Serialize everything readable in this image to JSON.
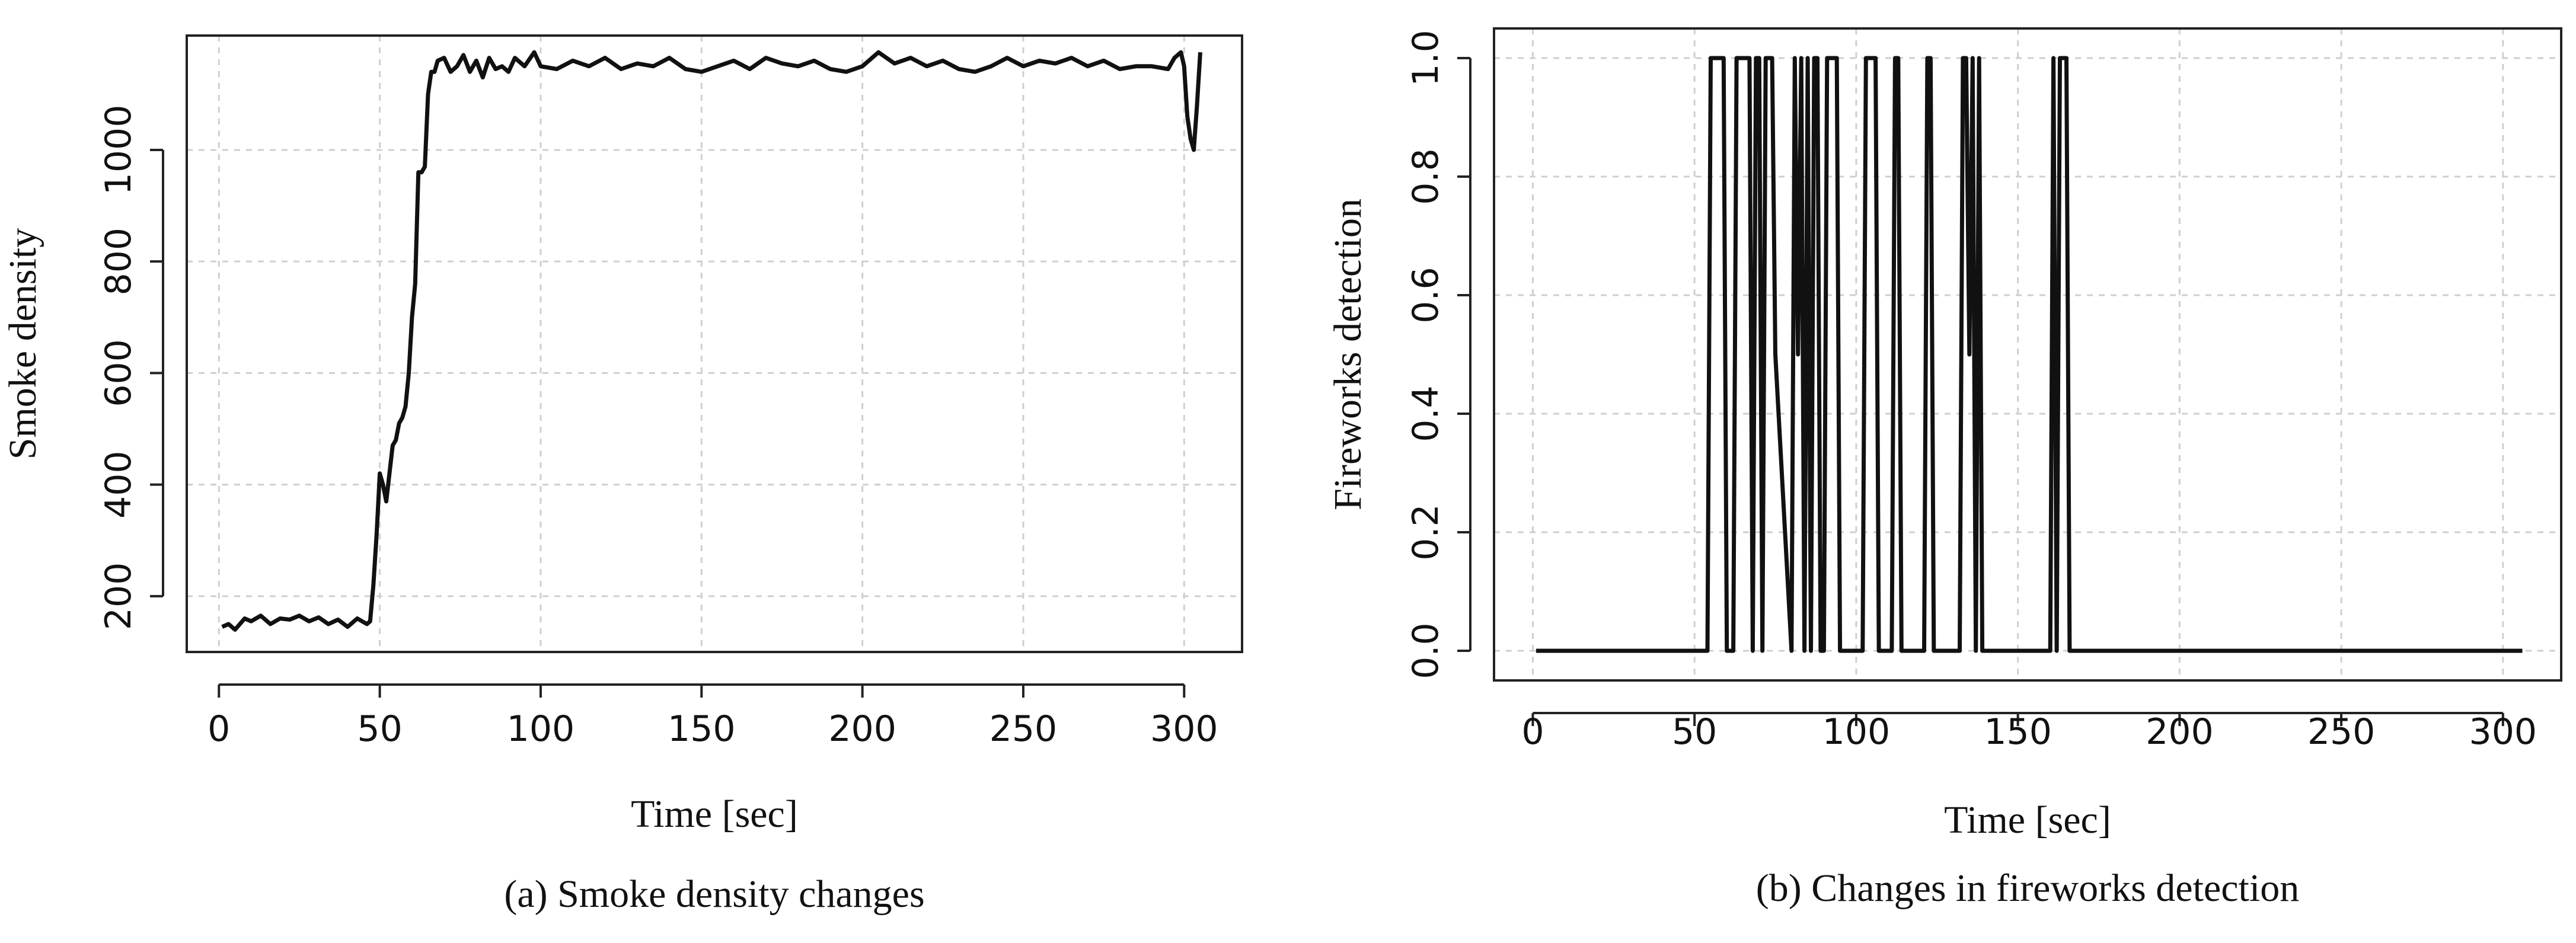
{
  "chart_data": [
    {
      "type": "line",
      "xlabel": "Time [sec]",
      "ylabel": "Smoke density",
      "caption": "(a) Smoke density changes",
      "xlim": [
        -10,
        318
      ],
      "ylim": [
        100,
        1205
      ],
      "x_ticks": [
        0,
        50,
        100,
        150,
        200,
        250,
        300
      ],
      "y_ticks": [
        200,
        400,
        600,
        800,
        1000
      ],
      "grid": true,
      "series": [
        {
          "x": [
            1,
            3,
            5,
            8,
            10,
            13,
            16,
            19,
            22,
            25,
            28,
            31,
            34,
            37,
            40,
            43,
            46,
            47,
            48,
            49,
            50,
            51,
            52,
            53,
            54,
            55,
            56,
            57,
            58,
            59,
            60,
            61,
            62,
            63,
            64,
            65,
            66,
            67,
            68,
            70,
            72,
            74,
            76,
            78,
            80,
            82,
            84,
            86,
            88,
            90,
            92,
            95,
            98,
            100,
            105,
            110,
            115,
            120,
            125,
            130,
            135,
            140,
            145,
            150,
            155,
            160,
            165,
            170,
            175,
            180,
            185,
            190,
            195,
            200,
            205,
            210,
            215,
            220,
            225,
            230,
            235,
            240,
            245,
            250,
            255,
            260,
            265,
            270,
            275,
            280,
            285,
            290,
            295,
            297,
            299,
            300,
            301,
            302,
            303,
            304,
            305
          ],
          "y": [
            145,
            150,
            140,
            160,
            155,
            165,
            150,
            160,
            158,
            165,
            155,
            162,
            150,
            158,
            145,
            160,
            150,
            155,
            220,
            310,
            420,
            400,
            370,
            420,
            470,
            480,
            510,
            520,
            540,
            600,
            700,
            760,
            960,
            960,
            970,
            1100,
            1140,
            1140,
            1160,
            1165,
            1140,
            1150,
            1170,
            1140,
            1160,
            1130,
            1165,
            1145,
            1150,
            1140,
            1165,
            1150,
            1175,
            1150,
            1145,
            1160,
            1150,
            1165,
            1145,
            1155,
            1150,
            1165,
            1145,
            1140,
            1150,
            1160,
            1145,
            1165,
            1155,
            1150,
            1160,
            1145,
            1140,
            1150,
            1175,
            1155,
            1165,
            1150,
            1160,
            1145,
            1140,
            1150,
            1165,
            1150,
            1160,
            1155,
            1165,
            1150,
            1160,
            1145,
            1150,
            1150,
            1145,
            1165,
            1175,
            1150,
            1060,
            1020,
            1000,
            1080,
            1175
          ]
        }
      ]
    },
    {
      "type": "line",
      "xlabel": "Time [sec]",
      "ylabel": "Fireworks detection",
      "caption": "(b) Changes in fireworks detection",
      "xlim": [
        -12,
        318
      ],
      "ylim": [
        -0.05,
        1.05
      ],
      "x_ticks": [
        0,
        50,
        100,
        150,
        200,
        250,
        300
      ],
      "y_ticks": [
        "0.0",
        "0.2",
        "0.4",
        "0.6",
        "0.8",
        "1.0"
      ],
      "grid": true,
      "series": [
        {
          "x": [
            1,
            54,
            55,
            59,
            60,
            62,
            63,
            67,
            68,
            69,
            70,
            71,
            72,
            74,
            75,
            80,
            81,
            82,
            83,
            84,
            85,
            86,
            87,
            88,
            89,
            90,
            91,
            94,
            95,
            102,
            103,
            106,
            107,
            111,
            112,
            113,
            114,
            121,
            122,
            123,
            124,
            132,
            133,
            134,
            135,
            136,
            137,
            138,
            139,
            160,
            161,
            162,
            163,
            165,
            166,
            306
          ],
          "y": [
            0,
            0,
            1,
            1,
            0,
            0,
            1,
            1,
            0,
            1,
            1,
            0,
            1,
            1,
            0.5,
            0,
            1,
            0.5,
            1,
            0,
            1,
            0,
            1,
            1,
            0,
            0,
            1,
            1,
            0,
            0,
            1,
            1,
            0,
            0,
            1,
            1,
            0,
            0,
            1,
            1,
            0,
            0,
            1,
            1,
            0.5,
            1,
            0,
            1,
            0,
            0,
            1,
            0,
            1,
            1,
            0,
            0
          ]
        }
      ]
    }
  ]
}
